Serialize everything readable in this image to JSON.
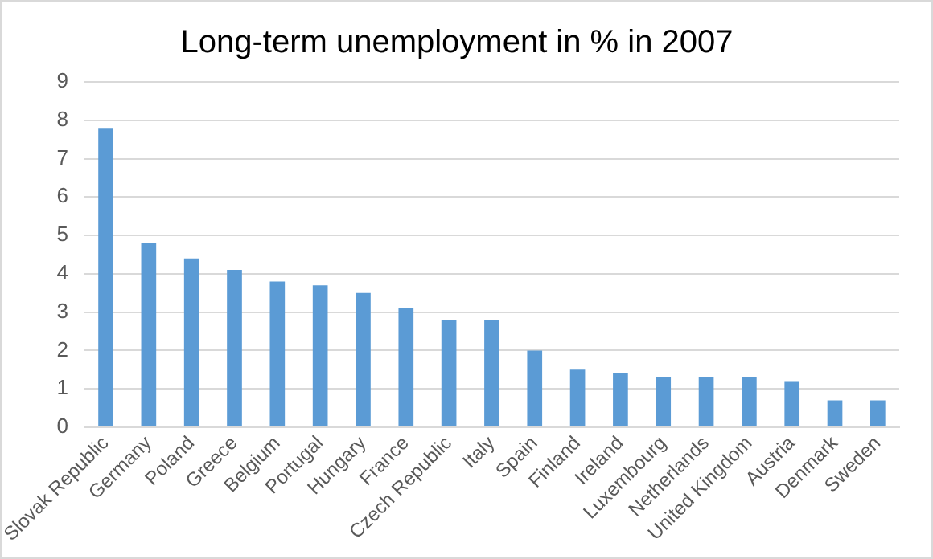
{
  "chart_data": {
    "type": "bar",
    "title": "Long-term unemployment in % in 2007",
    "categories": [
      "Slovak Republic",
      "Germany",
      "Poland",
      "Greece",
      "Belgium",
      "Portugal",
      "Hungary",
      "France",
      "Czech Republic",
      "Italy",
      "Spain",
      "Finland",
      "Ireland",
      "Luxembourg",
      "Netherlands",
      "United Kingdom",
      "Austria",
      "Denmark",
      "Sweden"
    ],
    "values": [
      7.8,
      4.8,
      4.4,
      4.1,
      3.8,
      3.7,
      3.5,
      3.1,
      2.8,
      2.8,
      2.0,
      1.5,
      1.4,
      1.3,
      1.3,
      1.3,
      1.2,
      0.7,
      0.7
    ],
    "color": "#5b9bd5",
    "ylim": [
      0,
      9
    ],
    "yticks": [
      0,
      1,
      2,
      3,
      4,
      5,
      6,
      7,
      8,
      9
    ],
    "grid": "y"
  }
}
